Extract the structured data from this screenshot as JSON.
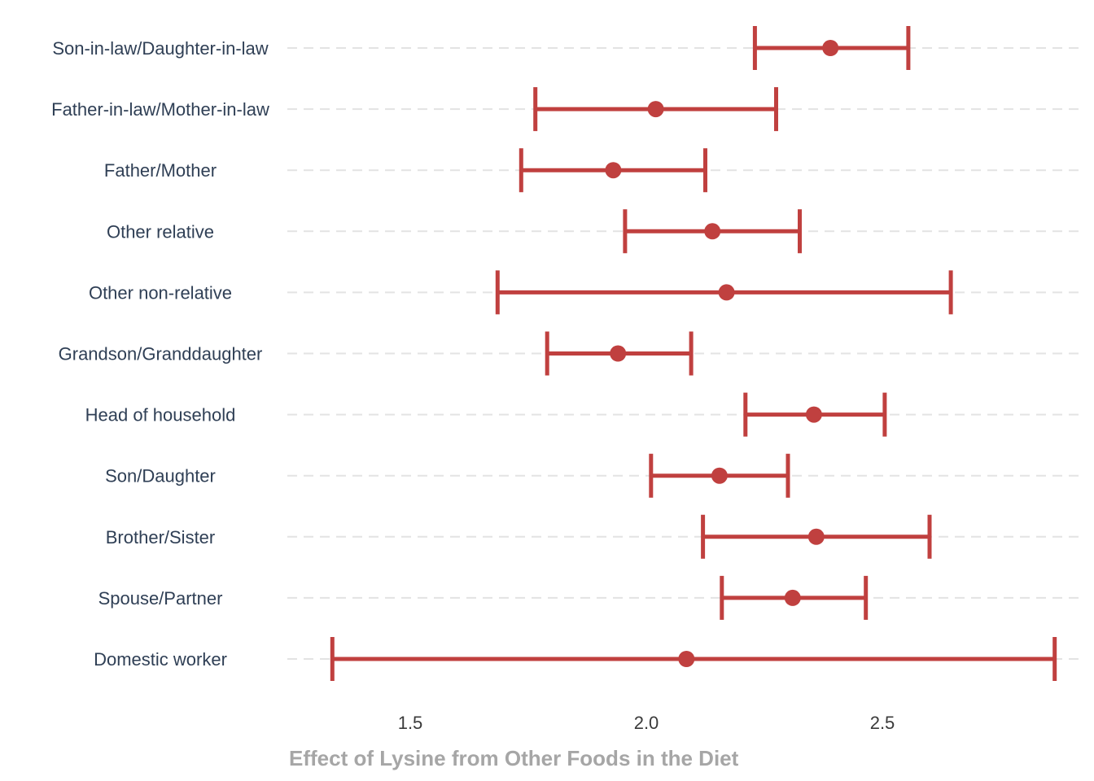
{
  "chart_data": {
    "type": "errorbar",
    "title": "",
    "xlabel": "Effect of Lysine from Other Foods in the Diet",
    "ylabel": "",
    "xlim": [
      1.3,
      2.85
    ],
    "xticks": [
      "1.5",
      "2.0",
      "2.5"
    ],
    "xtick_values": [
      1.5,
      2.0,
      2.5
    ],
    "grid": "horizontal-dashed",
    "color": "#c0403f",
    "categories": [
      "Son-in-law/Daughter-in-law",
      "Father-in-law/Mother-in-law",
      "Father/Mother",
      "Other relative",
      "Other non-relative",
      "Grandson/Granddaughter",
      "Head of household",
      "Son/Daughter",
      "Brother/Sister",
      "Spouse/Partner",
      "Domestic worker"
    ],
    "estimates": [
      2.39,
      2.02,
      1.93,
      2.14,
      2.17,
      1.94,
      2.355,
      2.155,
      2.36,
      2.31,
      2.085
    ],
    "lower": [
      2.23,
      1.765,
      1.735,
      1.955,
      1.685,
      1.79,
      2.21,
      2.01,
      2.12,
      2.16,
      1.335
    ],
    "upper": [
      2.555,
      2.275,
      2.125,
      2.325,
      2.645,
      2.095,
      2.505,
      2.3,
      2.6,
      2.465,
      2.865
    ]
  }
}
